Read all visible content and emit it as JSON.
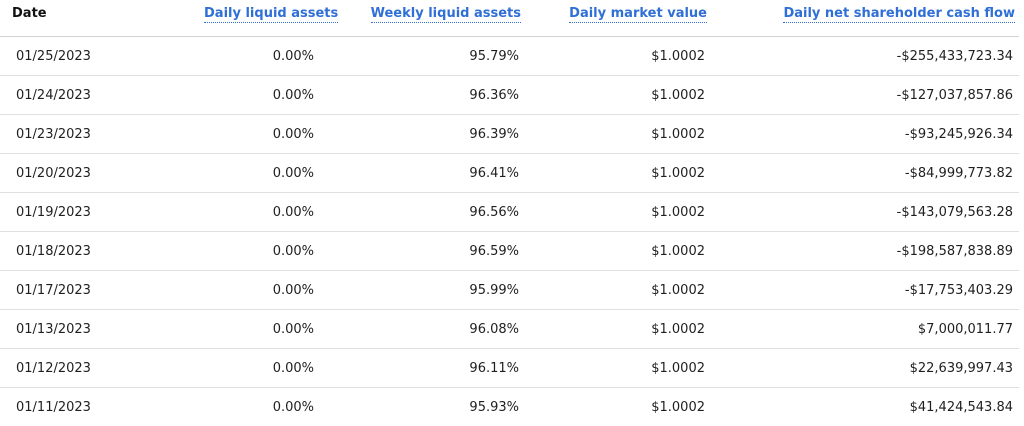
{
  "headers": {
    "date": "Date",
    "daily_liquid_assets": "Daily liquid assets",
    "weekly_liquid_assets": "Weekly liquid assets",
    "daily_market_value": "Daily market value",
    "daily_net_shareholder_cash_flow": "Daily net shareholder cash flow"
  },
  "rows": [
    {
      "date": "01/25/2023",
      "dla": "0.00%",
      "wla": "95.79%",
      "dmv": "$1.0002",
      "cash": "-$255,433,723.34"
    },
    {
      "date": "01/24/2023",
      "dla": "0.00%",
      "wla": "96.36%",
      "dmv": "$1.0002",
      "cash": "-$127,037,857.86"
    },
    {
      "date": "01/23/2023",
      "dla": "0.00%",
      "wla": "96.39%",
      "dmv": "$1.0002",
      "cash": "-$93,245,926.34"
    },
    {
      "date": "01/20/2023",
      "dla": "0.00%",
      "wla": "96.41%",
      "dmv": "$1.0002",
      "cash": "-$84,999,773.82"
    },
    {
      "date": "01/19/2023",
      "dla": "0.00%",
      "wla": "96.56%",
      "dmv": "$1.0002",
      "cash": "-$143,079,563.28"
    },
    {
      "date": "01/18/2023",
      "dla": "0.00%",
      "wla": "96.59%",
      "dmv": "$1.0002",
      "cash": "-$198,587,838.89"
    },
    {
      "date": "01/17/2023",
      "dla": "0.00%",
      "wla": "95.99%",
      "dmv": "$1.0002",
      "cash": "-$17,753,403.29"
    },
    {
      "date": "01/13/2023",
      "dla": "0.00%",
      "wla": "96.08%",
      "dmv": "$1.0002",
      "cash": "$7,000,011.77"
    },
    {
      "date": "01/12/2023",
      "dla": "0.00%",
      "wla": "96.11%",
      "dmv": "$1.0002",
      "cash": "$22,639,997.43"
    },
    {
      "date": "01/11/2023",
      "dla": "0.00%",
      "wla": "95.93%",
      "dmv": "$1.0002",
      "cash": "$41,424,543.84"
    }
  ],
  "colors": {
    "header_link": "#2f6fd6",
    "row_divider": "#e0e0e0"
  }
}
